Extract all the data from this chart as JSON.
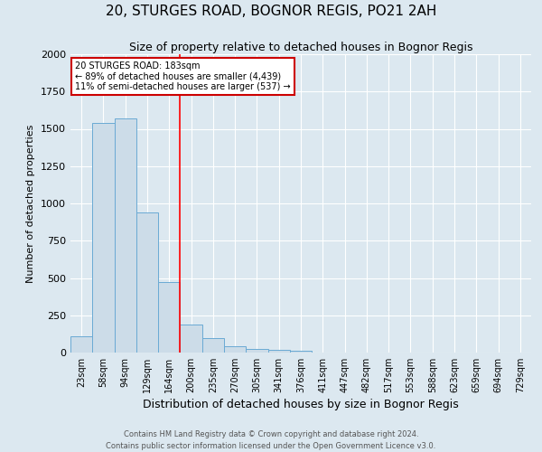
{
  "title1": "20, STURGES ROAD, BOGNOR REGIS, PO21 2AH",
  "title2": "Size of property relative to detached houses in Bognor Regis",
  "xlabel": "Distribution of detached houses by size in Bognor Regis",
  "ylabel": "Number of detached properties",
  "categories": [
    "23sqm",
    "58sqm",
    "94sqm",
    "129sqm",
    "164sqm",
    "200sqm",
    "235sqm",
    "270sqm",
    "305sqm",
    "341sqm",
    "376sqm",
    "411sqm",
    "447sqm",
    "482sqm",
    "517sqm",
    "553sqm",
    "588sqm",
    "623sqm",
    "659sqm",
    "694sqm",
    "729sqm"
  ],
  "values": [
    110,
    1540,
    1570,
    940,
    470,
    190,
    100,
    40,
    25,
    20,
    15,
    0,
    0,
    0,
    0,
    0,
    0,
    0,
    0,
    0,
    0
  ],
  "bar_color": "#ccdce8",
  "bar_edge_color": "#6aaad4",
  "red_line_x": 4.5,
  "annotation_text": "20 STURGES ROAD: 183sqm\n← 89% of detached houses are smaller (4,439)\n11% of semi-detached houses are larger (537) →",
  "annotation_box_color": "#ffffff",
  "annotation_box_edge_color": "#cc0000",
  "footer1": "Contains HM Land Registry data © Crown copyright and database right 2024.",
  "footer2": "Contains public sector information licensed under the Open Government Licence v3.0.",
  "ylim": [
    0,
    2000
  ],
  "background_color": "#dce8f0",
  "title1_fontsize": 11,
  "title2_fontsize": 9,
  "xlabel_fontsize": 9,
  "ylabel_fontsize": 8,
  "tick_fontsize": 7,
  "footer_fontsize": 6
}
